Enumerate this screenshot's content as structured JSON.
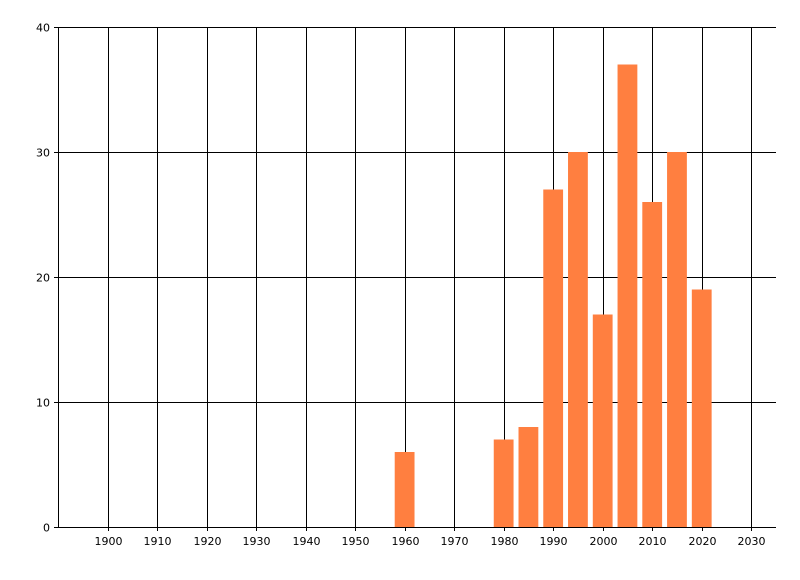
{
  "chart_data": {
    "type": "bar",
    "title": "",
    "xlabel": "",
    "ylabel": "",
    "x": [
      1960,
      1980,
      1985,
      1990,
      1995,
      2000,
      2005,
      2010,
      2015,
      2020
    ],
    "values": [
      6,
      7,
      8,
      27,
      30,
      17,
      37,
      26,
      30,
      19
    ],
    "bar_width_years": 4,
    "xlim": [
      1890,
      2035
    ],
    "ylim": [
      0,
      40
    ],
    "x_ticks": [
      1900,
      1910,
      1920,
      1930,
      1940,
      1950,
      1960,
      1970,
      1980,
      1990,
      2000,
      2010,
      2020,
      2030
    ],
    "y_ticks": [
      0,
      10,
      20,
      30,
      40
    ],
    "grid": true,
    "legend": "none",
    "bar_color": "#FF7F40",
    "grid_color": "#000000"
  }
}
